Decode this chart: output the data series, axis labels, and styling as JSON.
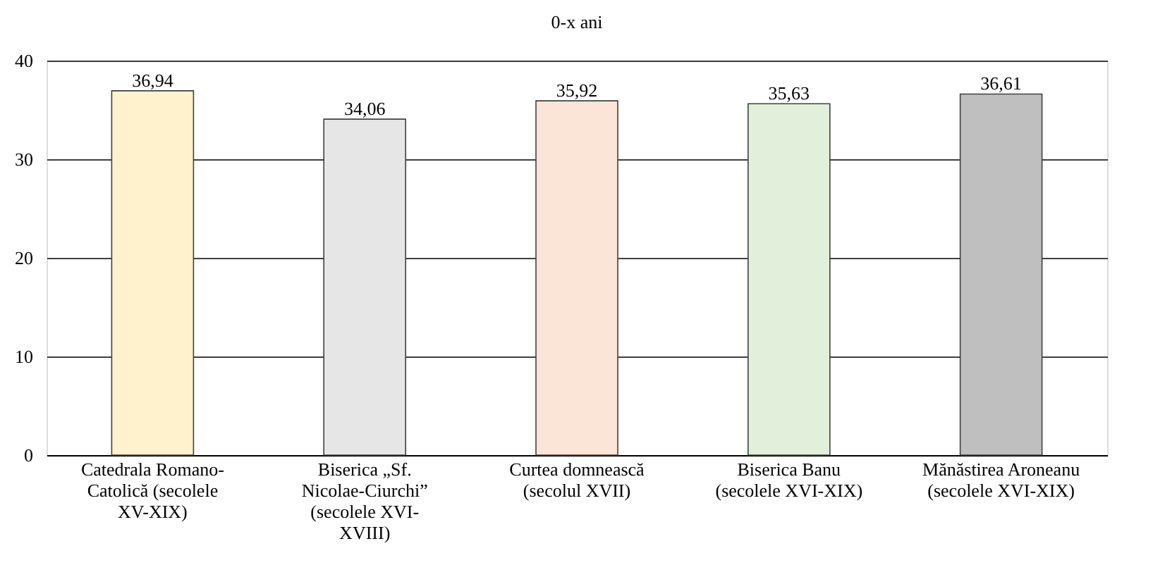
{
  "chart_data": {
    "type": "bar",
    "title": "0-x ani",
    "categories": [
      "Catedrala Romano-Catolică (secolele XV-XIX)",
      "Biserica „Sf. Nicolae-Ciurchi” (secolele XVI-XVIII)",
      "Curtea domnească (secolul XVII)",
      "Biserica Banu (secolele XVI-XIX)",
      "Mănăstirea Aroneanu (secolele XVI-XIX)"
    ],
    "values": [
      36.94,
      34.06,
      35.92,
      35.63,
      36.61
    ],
    "value_labels": [
      "36,94",
      "34,06",
      "35,92",
      "35,63",
      "36,61"
    ],
    "colors": [
      "#fff2cc",
      "#e7e6e6",
      "#fbe5d6",
      "#e2efda",
      "#bfbfbf"
    ],
    "ylim": [
      0,
      40
    ],
    "yticks": [
      0,
      10,
      20,
      30,
      40
    ],
    "grid": "y"
  }
}
